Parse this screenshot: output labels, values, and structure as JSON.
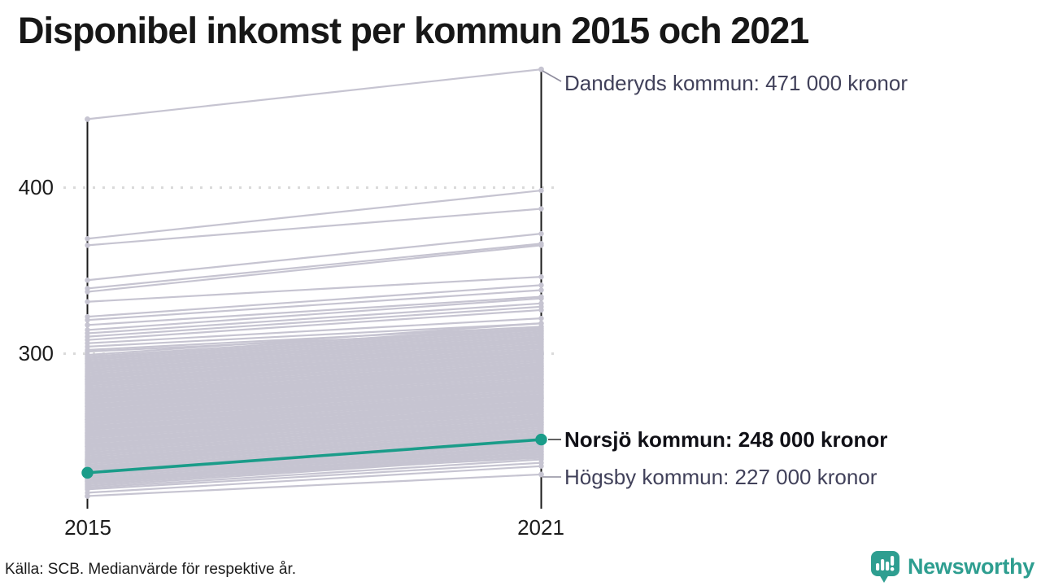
{
  "title": "Disponibel inkomst per kommun 2015 och 2021",
  "source": "Källa: SCB. Medianvärde för respektive år.",
  "logo": {
    "name": "Newsworthy",
    "icon": "newsworthy-speech-bubble-bar-chart-icon"
  },
  "colors": {
    "accent": "#1a9c89",
    "line_gray": "#c6c4d1",
    "axis": "#1a1a1a",
    "grid": "#dadada",
    "annotation_gray": "#41415a",
    "annotation_black": "#101016",
    "logo_teal": "#2e9e90"
  },
  "chart_data": {
    "type": "line",
    "variant": "slope",
    "title": "Disponibel inkomst per kommun 2015 och 2021",
    "x_categories": [
      "2015",
      "2021"
    ],
    "y_ticks": [
      {
        "value": 400,
        "label": "400"
      },
      {
        "value": 300,
        "label": "300"
      }
    ],
    "ylim": [
      210,
      480
    ],
    "grid": "dotted-horizontal",
    "unit_hint": "kronor",
    "labeled_series": [
      {
        "name": "Danderyds kommun",
        "label": "Danderyds kommun: 471 000 kronor",
        "values": [
          441,
          471
        ],
        "highlight": false
      },
      {
        "name": "Norsjö kommun",
        "label": "Norsjö kommun: 248 000 kronor",
        "values": [
          228,
          248
        ],
        "highlight": true
      },
      {
        "name": "Högsby kommun",
        "label": "Högsby kommun: 227 000 kronor",
        "values": [
          214,
          227
        ],
        "highlight": false
      }
    ],
    "background_series": [
      [
        369,
        398
      ],
      [
        365,
        387
      ],
      [
        344,
        372
      ],
      [
        339,
        366
      ],
      [
        337,
        365
      ],
      [
        331,
        346
      ],
      [
        322,
        341
      ],
      [
        320,
        338
      ],
      [
        317,
        334
      ],
      [
        314,
        333
      ],
      [
        312,
        330
      ],
      [
        310,
        328
      ],
      [
        308,
        326
      ],
      [
        306,
        321
      ],
      [
        304,
        318
      ],
      [
        302,
        316
      ],
      [
        301,
        314
      ],
      [
        299,
        318
      ],
      [
        298,
        316
      ],
      [
        297,
        315
      ],
      [
        296,
        314
      ],
      [
        295,
        313
      ],
      [
        294,
        312
      ],
      [
        293,
        311
      ],
      [
        292,
        310
      ],
      [
        291,
        309
      ],
      [
        290,
        308
      ],
      [
        289,
        307
      ],
      [
        288,
        306
      ],
      [
        287,
        305
      ],
      [
        286,
        304
      ],
      [
        285,
        303
      ],
      [
        284,
        302
      ],
      [
        283,
        301
      ],
      [
        282,
        300
      ],
      [
        281,
        299
      ],
      [
        280,
        298
      ],
      [
        279,
        297
      ],
      [
        278,
        296
      ],
      [
        277,
        295
      ],
      [
        276,
        294
      ],
      [
        275,
        293
      ],
      [
        274,
        292
      ],
      [
        273,
        291
      ],
      [
        272,
        290
      ],
      [
        271,
        289
      ],
      [
        270,
        288
      ],
      [
        269,
        287
      ],
      [
        268,
        286
      ],
      [
        267,
        285
      ],
      [
        266,
        284
      ],
      [
        265,
        283
      ],
      [
        264,
        282
      ],
      [
        263,
        281
      ],
      [
        262,
        280
      ],
      [
        261,
        279
      ],
      [
        260,
        278
      ],
      [
        259,
        277
      ],
      [
        258,
        276
      ],
      [
        257,
        275
      ],
      [
        256,
        274
      ],
      [
        255,
        273
      ],
      [
        254,
        272
      ],
      [
        253,
        271
      ],
      [
        252,
        270
      ],
      [
        251,
        269
      ],
      [
        250,
        268
      ],
      [
        249,
        267
      ],
      [
        248,
        266
      ],
      [
        247,
        265
      ],
      [
        246,
        264
      ],
      [
        245,
        263
      ],
      [
        244,
        262
      ],
      [
        243,
        261
      ],
      [
        242,
        260
      ],
      [
        241,
        259
      ],
      [
        240,
        258
      ],
      [
        239,
        257
      ],
      [
        238,
        256
      ],
      [
        237,
        255
      ],
      [
        236,
        254
      ],
      [
        235,
        253
      ],
      [
        234,
        252
      ],
      [
        233,
        251
      ],
      [
        232,
        250
      ],
      [
        231,
        249
      ],
      [
        230,
        248
      ],
      [
        229,
        247
      ],
      [
        228,
        246
      ],
      [
        227,
        245
      ],
      [
        226,
        244
      ],
      [
        225,
        243
      ],
      [
        224,
        242
      ],
      [
        223,
        241
      ],
      [
        222,
        240
      ],
      [
        221,
        239
      ],
      [
        220,
        238
      ],
      [
        219,
        236
      ],
      [
        218,
        234
      ],
      [
        216,
        232
      ],
      [
        272,
        287
      ],
      [
        268,
        290
      ],
      [
        264,
        279
      ],
      [
        260,
        281
      ],
      [
        256,
        269
      ],
      [
        252,
        273
      ],
      [
        248,
        261
      ],
      [
        244,
        265
      ],
      [
        240,
        253
      ],
      [
        236,
        257
      ],
      [
        232,
        245
      ],
      [
        228,
        243
      ],
      [
        224,
        239
      ],
      [
        246,
        268
      ],
      [
        250,
        271
      ],
      [
        254,
        277
      ],
      [
        258,
        273
      ],
      [
        262,
        284
      ],
      [
        266,
        281
      ],
      [
        270,
        292
      ],
      [
        274,
        289
      ],
      [
        278,
        293
      ],
      [
        282,
        297
      ],
      [
        286,
        301
      ],
      [
        290,
        304
      ],
      [
        294,
        308
      ],
      [
        235,
        250
      ],
      [
        231,
        246
      ],
      [
        227,
        241
      ],
      [
        223,
        237
      ],
      [
        244,
        258
      ],
      [
        252,
        266
      ],
      [
        260,
        274
      ],
      [
        268,
        283
      ],
      [
        276,
        291
      ],
      [
        284,
        299
      ]
    ]
  }
}
